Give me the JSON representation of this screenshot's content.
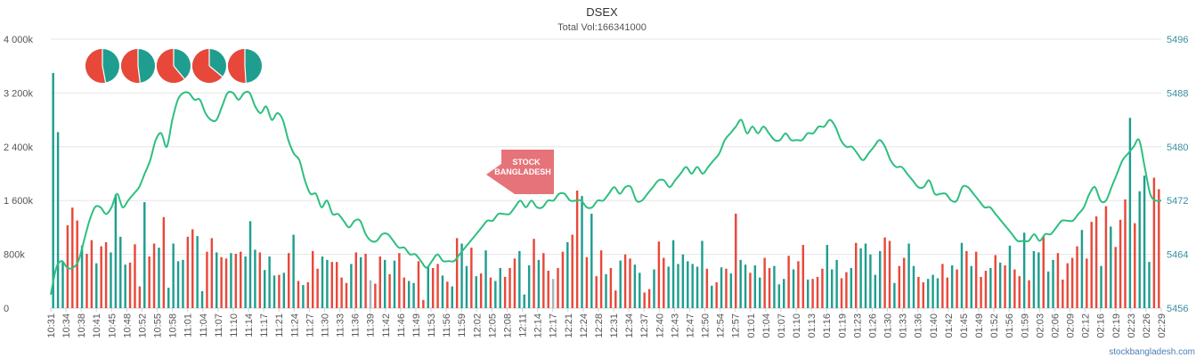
{
  "chart_data": {
    "type": "bar+line",
    "title": "DSEX",
    "subtitle": "Total Vol:166341000",
    "y_left": {
      "ticks": [
        "0",
        "800k",
        "1 600k",
        "2 400k",
        "3 200k",
        "4 000k"
      ],
      "range": [
        0,
        3460000
      ]
    },
    "y_right": {
      "ticks": [
        "5456",
        "5464",
        "5472",
        "5480",
        "5488",
        "5496"
      ],
      "range": [
        5456,
        5496
      ]
    },
    "x_ticks": [
      "10:31",
      "10:34",
      "10:38",
      "10:41",
      "10:45",
      "10:48",
      "10:52",
      "10:55",
      "10:58",
      "11:01",
      "11:04",
      "11:07",
      "11:10",
      "11:14",
      "11:17",
      "11:21",
      "11:24",
      "11:27",
      "11:30",
      "11:33",
      "11:36",
      "11:39",
      "11:42",
      "11:46",
      "11:49",
      "11:53",
      "11:56",
      "11:59",
      "12:02",
      "12:05",
      "12:08",
      "12:11",
      "12:14",
      "12:17",
      "12:21",
      "12:24",
      "12:28",
      "12:31",
      "12:34",
      "12:37",
      "12:40",
      "12:43",
      "12:47",
      "12:50",
      "12:54",
      "12:57",
      "01:01",
      "01:04",
      "01:07",
      "01:10",
      "01:13",
      "01:16",
      "01:19",
      "01:23",
      "01:26",
      "01:30",
      "01:33",
      "01:36",
      "01:40",
      "01:42",
      "01:45",
      "01:49",
      "01:52",
      "01:56",
      "01:59",
      "02:03",
      "02:06",
      "02:09",
      "02:12",
      "02:16",
      "02:19",
      "02:23",
      "02:26",
      "02:29"
    ],
    "bars": {
      "name": "Volume",
      "colors": {
        "up": "#1f9e8f",
        "down": "#e8483a",
        "neutral": "#aab4be"
      },
      "values": [
        3460000,
        2590000,
        690000,
        1220000,
        1480000,
        1290000,
        920000,
        800000,
        1000000,
        660000,
        910000,
        970000,
        820000,
        1670000,
        1050000,
        640000,
        670000,
        940000,
        320000,
        1560000,
        760000,
        950000,
        890000,
        1340000,
        300000,
        950000,
        690000,
        710000,
        1050000,
        1160000,
        1060000,
        250000,
        830000,
        1030000,
        820000,
        750000,
        730000,
        810000,
        800000,
        830000,
        760000,
        1280000,
        860000,
        820000,
        560000,
        760000,
        480000,
        490000,
        520000,
        810000,
        1080000,
        400000,
        340000,
        380000,
        840000,
        580000,
        760000,
        710000,
        680000,
        680000,
        450000,
        370000,
        650000,
        820000,
        750000,
        800000,
        410000,
        360000,
        760000,
        710000,
        500000,
        700000,
        810000,
        450000,
        400000,
        370000,
        690000,
        120000,
        610000,
        590000,
        650000,
        480000,
        390000,
        320000,
        1030000,
        950000,
        620000,
        890000,
        470000,
        510000,
        850000,
        450000,
        400000,
        590000,
        460000,
        590000,
        730000,
        840000,
        200000,
        630000,
        1020000,
        710000,
        810000,
        550000,
        430000,
        590000,
        830000,
        970000,
        1080000,
        1730000,
        1650000,
        750000,
        1390000,
        470000,
        850000,
        500000,
        590000,
        260000,
        700000,
        790000,
        730000,
        640000,
        520000,
        230000,
        280000,
        570000,
        980000,
        740000,
        610000,
        1000000,
        650000,
        790000,
        690000,
        650000,
        610000,
        990000,
        580000,
        330000,
        380000,
        600000,
        580000,
        510000,
        1390000,
        710000,
        640000,
        520000,
        630000,
        450000,
        740000,
        590000,
        620000,
        350000,
        430000,
        770000,
        570000,
        690000,
        930000,
        420000,
        430000,
        460000,
        580000,
        930000,
        570000,
        710000,
        440000,
        530000,
        590000,
        960000,
        880000,
        950000,
        790000,
        490000,
        840000,
        1040000,
        990000,
        370000,
        620000,
        740000,
        950000,
        620000,
        460000,
        380000,
        430000,
        490000,
        440000,
        650000,
        450000,
        630000,
        570000,
        960000,
        840000,
        620000,
        830000,
        460000,
        550000,
        590000,
        780000,
        670000,
        630000,
        920000,
        570000,
        470000,
        1110000,
        410000,
        840000,
        820000,
        1060000,
        540000,
        710000,
        810000,
        420000,
        660000,
        740000,
        910000,
        1150000,
        730000,
        1270000,
        1350000,
        620000,
        1500000,
        1200000,
        900000,
        1300000,
        1600000,
        2800000,
        1250000,
        1720000,
        1950000,
        680000,
        1920000,
        1750000
      ],
      "directions": "UUURRRURRURRUUUURRRURRURUUUURRUURRURRURRUUURUUURURURURRRUURRRRURURURRURURRUURRURRURURUURURURUURRRUUURURRRRRURRURURRURRURRUURRURRUUUUUUUURURURURUURUURRUUURURRURRRUUURRURUUUUURRURRUURRUUURRURURURRRURURURRURUURUURRRRRURRRURURRRURUUURRURRRRRRURRURRURUURUR",
      "neutral_indices": [
        66,
        104
      ]
    },
    "line": {
      "name": "DSEX",
      "color": "#2dbf7f",
      "values": [
        5458,
        5462,
        5463,
        5462,
        5462,
        5463,
        5466,
        5469,
        5471,
        5471,
        5470,
        5471,
        5473,
        5471,
        5472,
        5473,
        5474,
        5476,
        5478,
        5481,
        5482,
        5480,
        5484,
        5487,
        5488,
        5488,
        5487,
        5487,
        5485,
        5484,
        5484,
        5486,
        5488,
        5488,
        5487,
        5488,
        5488,
        5486,
        5485,
        5486,
        5484,
        5485,
        5484,
        5481,
        5479,
        5478,
        5475,
        5473,
        5473,
        5471,
        5472,
        5470,
        5470,
        5469,
        5468,
        5469,
        5469,
        5467,
        5466,
        5466,
        5467,
        5467,
        5466,
        5465,
        5465,
        5464,
        5464,
        5463,
        5462,
        5463,
        5464,
        5463,
        5463,
        5463,
        5464,
        5465,
        5466,
        5467,
        5468,
        5469,
        5469,
        5470,
        5470,
        5470,
        5471,
        5472,
        5471,
        5472,
        5471,
        5471,
        5472,
        5472,
        5473,
        5473,
        5472,
        5472,
        5472,
        5471,
        5471,
        5472,
        5472,
        5473,
        5474,
        5473,
        5474,
        5474,
        5472,
        5472,
        5473,
        5474,
        5475,
        5475,
        5474,
        5475,
        5476,
        5477,
        5476,
        5477,
        5476,
        5477,
        5478,
        5479,
        5481,
        5482,
        5483,
        5484,
        5482,
        5483,
        5482,
        5483,
        5482,
        5481,
        5481,
        5482,
        5481,
        5481,
        5481,
        5482,
        5482,
        5483,
        5483,
        5484,
        5483,
        5481,
        5480,
        5480,
        5479,
        5478,
        5479,
        5480,
        5481,
        5480,
        5478,
        5477,
        5477,
        5476,
        5475,
        5474,
        5474,
        5475,
        5473,
        5473,
        5473,
        5472,
        5472,
        5474,
        5474,
        5473,
        5472,
        5471,
        5471,
        5470,
        5469,
        5468,
        5467,
        5466,
        5466,
        5466,
        5467,
        5466,
        5467,
        5467,
        5468,
        5469,
        5469,
        5469,
        5470,
        5471,
        5473,
        5474,
        5472,
        5472,
        5474,
        5476,
        5478,
        5479,
        5480,
        5481,
        5477,
        5473,
        5472,
        5472
      ]
    },
    "pies": [
      {
        "red": 0.53,
        "teal": 0.47
      },
      {
        "red": 0.52,
        "teal": 0.48
      },
      {
        "red": 0.61,
        "teal": 0.39
      },
      {
        "red": 0.64,
        "teal": 0.36
      },
      {
        "red": 0.51,
        "teal": 0.49
      }
    ],
    "grid": true,
    "legend": "none"
  },
  "watermark": {
    "line1": "STOCK",
    "line2": "BANGLADESH",
    "color": "#e25a63"
  },
  "credit": "stockbangladesh.com"
}
